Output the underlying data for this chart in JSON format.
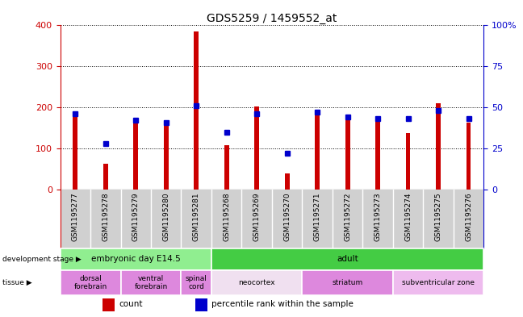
{
  "title": "GDS5259 / 1459552_at",
  "samples": [
    "GSM1195277",
    "GSM1195278",
    "GSM1195279",
    "GSM1195280",
    "GSM1195281",
    "GSM1195268",
    "GSM1195269",
    "GSM1195270",
    "GSM1195271",
    "GSM1195272",
    "GSM1195273",
    "GSM1195274",
    "GSM1195275",
    "GSM1195276"
  ],
  "count_values": [
    185,
    63,
    163,
    160,
    385,
    108,
    202,
    40,
    185,
    170,
    168,
    138,
    210,
    163
  ],
  "percentile_values": [
    46,
    28,
    42,
    41,
    51,
    35,
    46,
    22,
    47,
    44,
    43,
    43,
    48,
    43
  ],
  "ylim_left": [
    0,
    400
  ],
  "ylim_right": [
    0,
    100
  ],
  "yticks_left": [
    0,
    100,
    200,
    300,
    400
  ],
  "yticks_right": [
    0,
    25,
    50,
    75,
    100
  ],
  "bar_color": "#cc0000",
  "dot_color": "#0000cc",
  "background_color": "#ffffff",
  "tick_bg_color": "#d0d0d0",
  "dev_stage_groups": [
    {
      "label": "embryonic day E14.5",
      "start": 0,
      "end": 5,
      "color": "#90ee90"
    },
    {
      "label": "adult",
      "start": 5,
      "end": 14,
      "color": "#44cc44"
    }
  ],
  "tissue_groups": [
    {
      "label": "dorsal\nforebrain",
      "start": 0,
      "end": 2,
      "color": "#dd88dd"
    },
    {
      "label": "ventral\nforebrain",
      "start": 2,
      "end": 4,
      "color": "#dd88dd"
    },
    {
      "label": "spinal\ncord",
      "start": 4,
      "end": 5,
      "color": "#dd88dd"
    },
    {
      "label": "neocortex",
      "start": 5,
      "end": 8,
      "color": "#f0e0f0"
    },
    {
      "label": "striatum",
      "start": 8,
      "end": 11,
      "color": "#dd88dd"
    },
    {
      "label": "subventricular zone",
      "start": 11,
      "end": 14,
      "color": "#eebbee"
    }
  ],
  "dev_stage_label": "development stage",
  "tissue_label": "tissue",
  "legend_count": "count",
  "legend_percentile": "percentile rank within the sample",
  "left_axis_color": "#cc0000",
  "right_axis_color": "#0000cc",
  "bar_width": 0.15
}
